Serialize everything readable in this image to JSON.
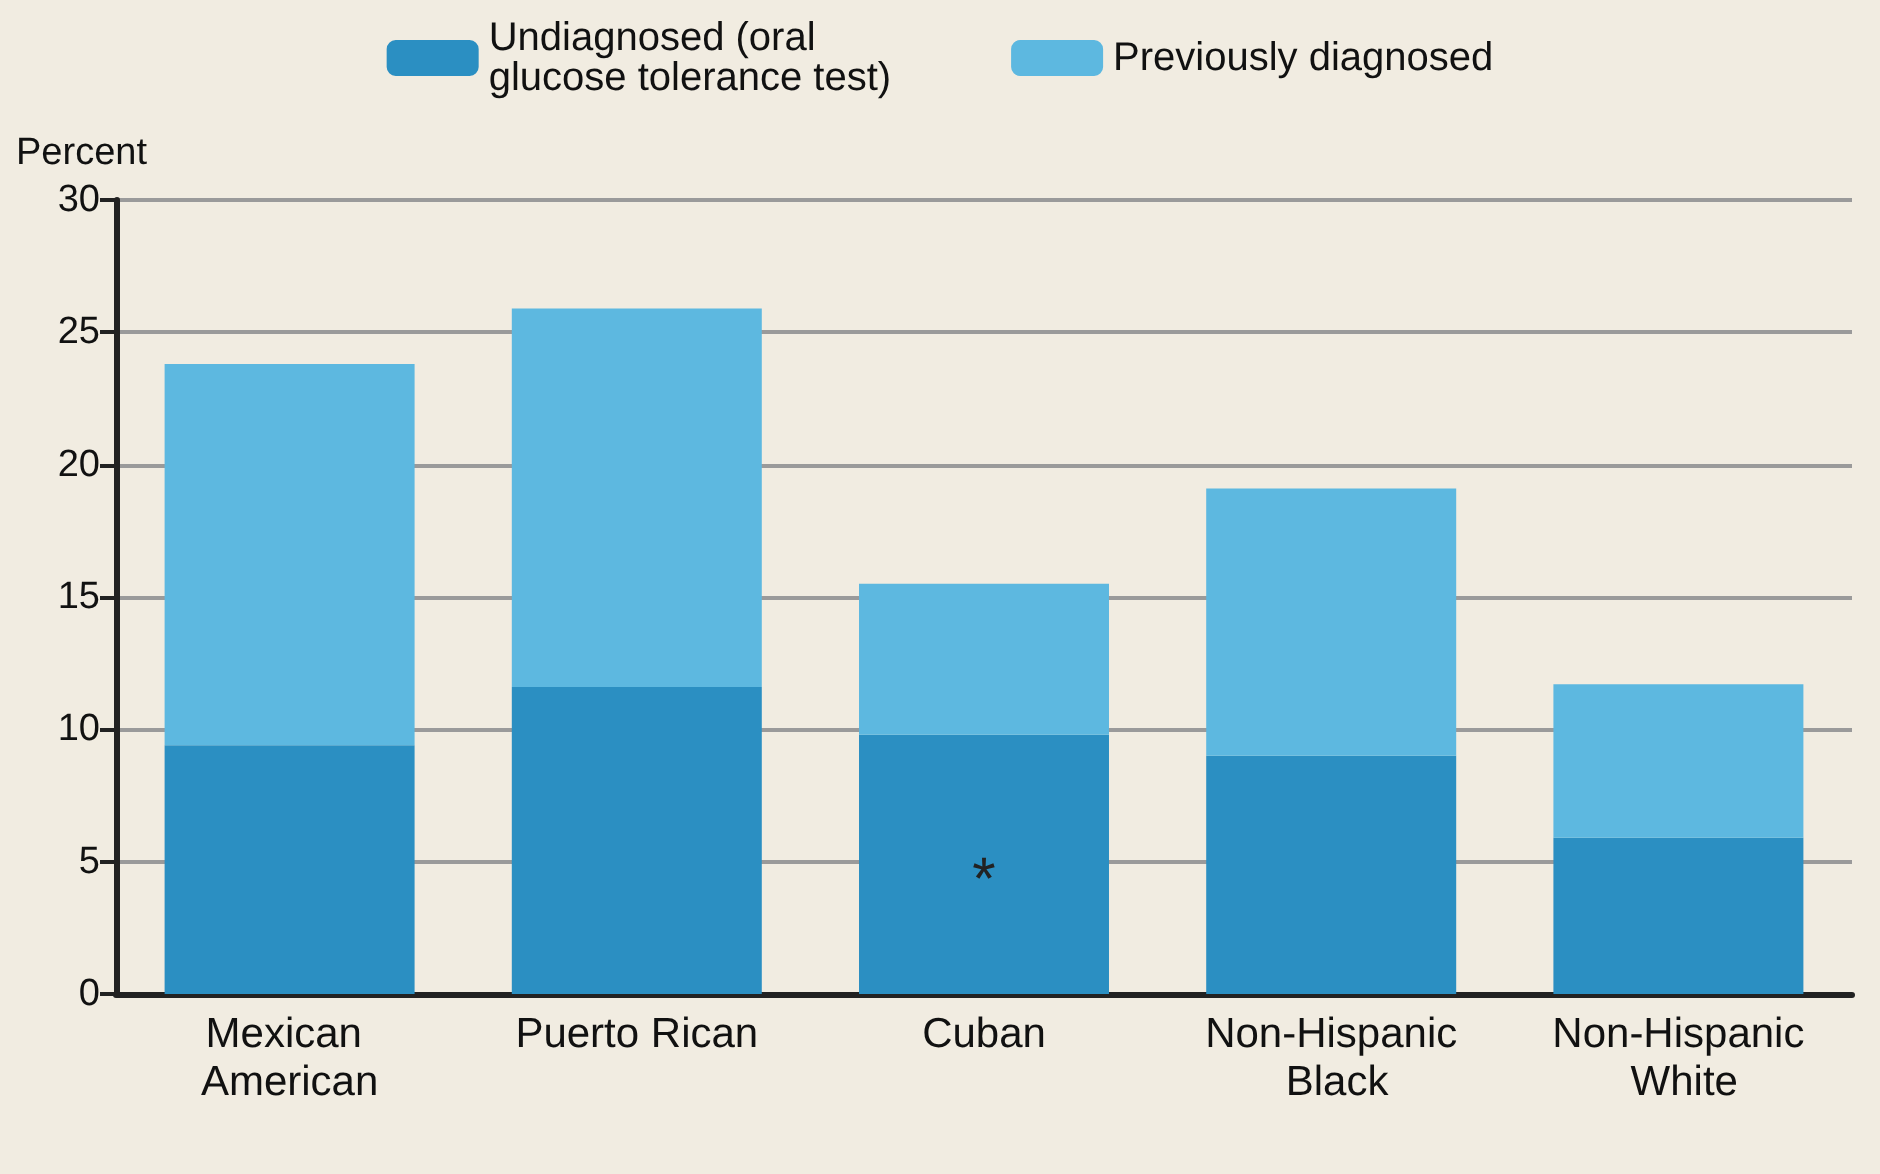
{
  "chart_data": {
    "type": "bar",
    "stacked": true,
    "ylabel": "Percent",
    "categories": [
      "Mexican American",
      "Puerto Rican",
      "Cuban",
      "Non-Hispanic Black",
      "Non-Hispanic White"
    ],
    "series": [
      {
        "name": "Undiagnosed (oral glucose tolerance test)",
        "color": "#2b8fc2",
        "values": [
          9.4,
          11.6,
          9.8,
          9.0,
          5.9
        ]
      },
      {
        "name": "Previously diagnosed",
        "color": "#5db8e0",
        "values": [
          14.4,
          14.3,
          5.7,
          10.1,
          5.8
        ]
      }
    ],
    "ylim": [
      0,
      30
    ],
    "yticks": [
      0,
      5,
      10,
      15,
      20,
      25,
      30
    ],
    "grid": "y",
    "legend": "top",
    "annotations": [
      "*"
    ]
  }
}
